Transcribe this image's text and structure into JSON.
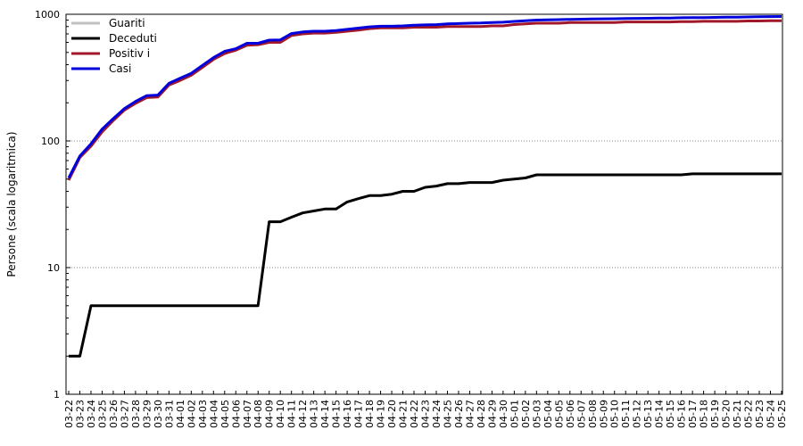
{
  "chart_data": {
    "type": "line",
    "ylabel": "Persone (scala logaritmica)",
    "xlabel": "",
    "yscale": "log",
    "ylim": [
      1,
      1000
    ],
    "yticks": [
      1,
      10,
      100,
      1000
    ],
    "ytick_labels": [
      "1",
      "10",
      "100",
      "1000"
    ],
    "grid": "horizontal dotted",
    "legend_position": "top-left",
    "x": [
      "03-22",
      "03-23",
      "03-24",
      "03-25",
      "03-26",
      "03-27",
      "03-28",
      "03-29",
      "03-30",
      "03-31",
      "04-01",
      "04-02",
      "04-03",
      "04-04",
      "04-05",
      "04-06",
      "04-07",
      "04-08",
      "04-09",
      "04-10",
      "04-11",
      "04-12",
      "04-13",
      "04-14",
      "04-15",
      "04-16",
      "04-17",
      "04-18",
      "04-19",
      "04-20",
      "04-21",
      "04-22",
      "04-23",
      "04-24",
      "04-25",
      "04-26",
      "04-27",
      "04-28",
      "04-29",
      "04-30",
      "05-01",
      "05-02",
      "05-03",
      "05-04",
      "05-05",
      "05-06",
      "05-07",
      "05-08",
      "05-09",
      "05-10",
      "05-11",
      "05-12",
      "05-13",
      "05-14",
      "05-15",
      "05-16",
      "05-17",
      "05-18",
      "05-19",
      "05-20",
      "05-21",
      "05-22",
      "05-23",
      "05-24",
      "05-25"
    ],
    "series": [
      {
        "name": "Guariti",
        "color": "#c0c0c0",
        "values": [
          null,
          null,
          null,
          null,
          null,
          null,
          null,
          null,
          null,
          null,
          null,
          null,
          null,
          null,
          null,
          null,
          null,
          null,
          null,
          null,
          null,
          null,
          null,
          null,
          null,
          null,
          null,
          null,
          null,
          null,
          null,
          null,
          null,
          null,
          null,
          null,
          null,
          null,
          null,
          null,
          null,
          null,
          null,
          null,
          null,
          null,
          null,
          null,
          null,
          null,
          null,
          null,
          null,
          null,
          null,
          null,
          null,
          null,
          null,
          null,
          null,
          null,
          null,
          null,
          null
        ]
      },
      {
        "name": "Deceduti",
        "color": "#000000",
        "values": [
          2,
          2,
          5,
          5,
          5,
          5,
          5,
          5,
          5,
          5,
          5,
          5,
          5,
          5,
          5,
          5,
          5,
          5,
          23,
          23,
          25,
          27,
          28,
          29,
          29,
          33,
          35,
          37,
          37,
          38,
          40,
          40,
          43,
          44,
          46,
          46,
          47,
          47,
          47,
          49,
          50,
          51,
          54,
          54,
          54,
          54,
          54,
          54,
          54,
          54,
          54,
          54,
          54,
          54,
          54,
          54,
          55,
          55,
          55,
          55,
          55,
          55,
          55,
          55,
          55
        ]
      },
      {
        "name": "Positiv i",
        "color": "#a0182a",
        "values": [
          49,
          74,
          91,
          118,
          145,
          175,
          198,
          220,
          222,
          276,
          300,
          330,
          380,
          440,
          490,
          520,
          570,
          575,
          600,
          600,
          680,
          700,
          710,
          710,
          720,
          735,
          750,
          770,
          780,
          780,
          780,
          790,
          790,
          790,
          800,
          800,
          800,
          800,
          810,
          810,
          830,
          840,
          850,
          850,
          850,
          860,
          860,
          860,
          860,
          860,
          870,
          870,
          870,
          870,
          870,
          875,
          875,
          880,
          880,
          880,
          880,
          885,
          885,
          890,
          890
        ]
      },
      {
        "name": "Casi",
        "color": "#0000dd",
        "values": [
          51,
          76,
          95,
          124,
          150,
          180,
          205,
          228,
          230,
          285,
          312,
          342,
          394,
          455,
          510,
          535,
          590,
          590,
          625,
          628,
          705,
          725,
          735,
          735,
          745,
          760,
          778,
          795,
          805,
          805,
          810,
          820,
          825,
          828,
          840,
          845,
          850,
          853,
          860,
          865,
          878,
          890,
          900,
          905,
          907,
          912,
          915,
          918,
          920,
          922,
          925,
          928,
          930,
          932,
          934,
          938,
          940,
          942,
          945,
          948,
          950,
          952,
          955,
          958,
          960
        ]
      }
    ]
  }
}
